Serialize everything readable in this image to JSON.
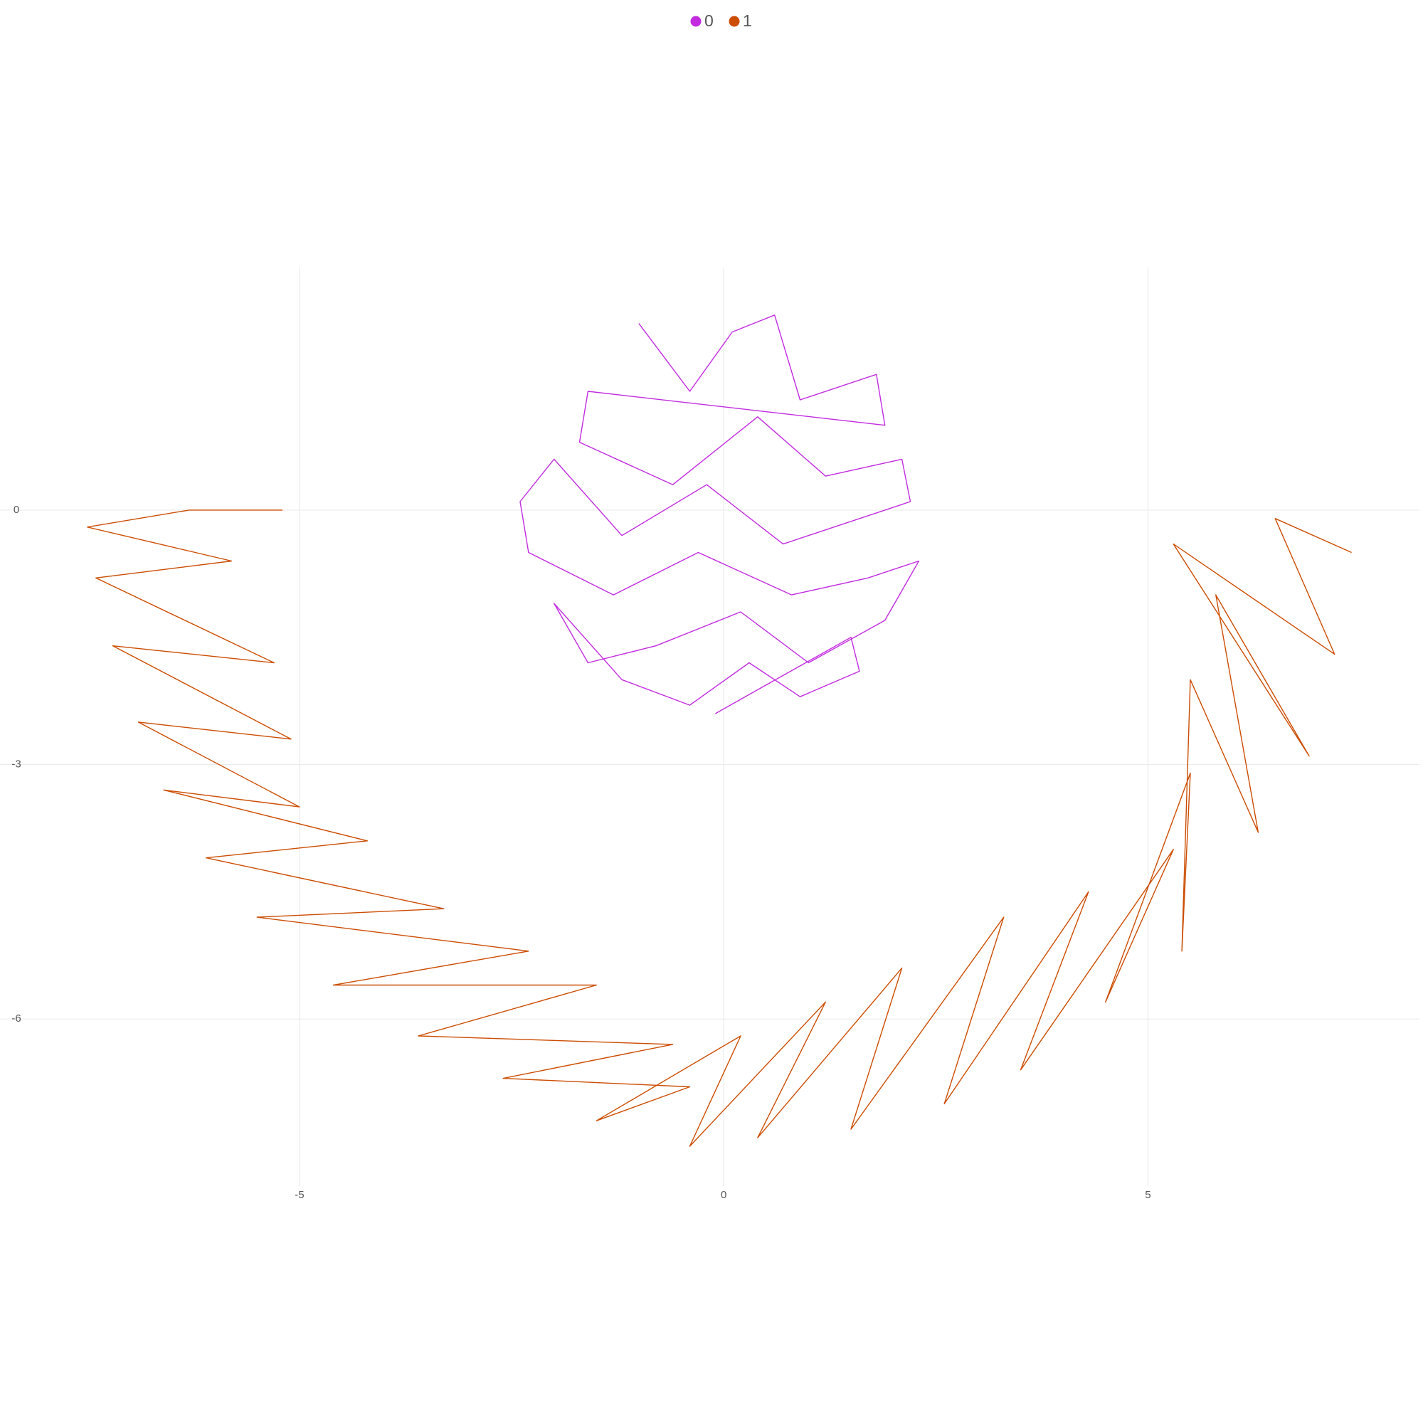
{
  "chart_data": {
    "type": "line",
    "xlim": [
      -8.53,
      8.2
    ],
    "ylim": [
      -7.97,
      2.86
    ],
    "xticks": [
      -5,
      0,
      5
    ],
    "yticks": [
      0,
      -3,
      -6
    ],
    "grid": true,
    "legend": "top",
    "series": [
      {
        "name": "0",
        "color": "#c22be0",
        "x": [
          -1.0,
          -0.4,
          0.1,
          0.6,
          0.9,
          1.8,
          1.9,
          -1.6,
          -1.7,
          -0.6,
          0.4,
          1.2,
          2.1,
          2.2,
          0.7,
          -0.2,
          -1.2,
          -2.0,
          -2.4,
          -2.3,
          -1.3,
          -0.3,
          0.8,
          1.7,
          2.3,
          1.9,
          1.0,
          0.2,
          -0.8,
          -1.6,
          -2.0,
          -1.2,
          -0.4,
          0.3,
          0.9,
          1.6,
          1.5,
          -0.1
        ],
        "y": [
          2.2,
          1.4,
          2.1,
          2.3,
          1.3,
          1.6,
          1.0,
          1.4,
          0.8,
          0.3,
          1.1,
          0.4,
          0.6,
          0.1,
          -0.4,
          0.3,
          -0.3,
          0.6,
          0.1,
          -0.5,
          -1.0,
          -0.5,
          -1.0,
          -0.8,
          -0.6,
          -1.3,
          -1.8,
          -1.2,
          -1.6,
          -1.8,
          -1.1,
          -2.0,
          -2.3,
          -1.8,
          -2.2,
          -1.9,
          -1.5,
          -2.4
        ]
      },
      {
        "name": "1",
        "color": "#cc4c02",
        "x": [
          -5.2,
          -6.3,
          -7.5,
          -5.8,
          -7.4,
          -5.3,
          -7.2,
          -5.1,
          -6.9,
          -5.0,
          -6.6,
          -4.2,
          -6.1,
          -3.3,
          -5.5,
          -2.3,
          -4.6,
          -1.5,
          -3.6,
          -0.6,
          -2.6,
          -0.4,
          -1.5,
          0.2,
          -0.4,
          1.2,
          0.4,
          2.1,
          1.5,
          3.3,
          2.6,
          4.3,
          3.5,
          5.3,
          4.5,
          5.5,
          5.4,
          5.5,
          6.3,
          5.8,
          6.9,
          5.3,
          7.2,
          6.5,
          7.4
        ],
        "y": [
          0.0,
          0.0,
          -0.2,
          -0.6,
          -0.8,
          -1.8,
          -1.6,
          -2.7,
          -2.5,
          -3.5,
          -3.3,
          -3.9,
          -4.1,
          -4.7,
          -4.8,
          -5.2,
          -5.6,
          -5.6,
          -6.2,
          -6.3,
          -6.7,
          -6.8,
          -7.2,
          -6.2,
          -7.5,
          -5.8,
          -7.4,
          -5.4,
          -7.3,
          -4.8,
          -7.0,
          -4.5,
          -6.6,
          -4.0,
          -5.8,
          -3.1,
          -5.2,
          -2.0,
          -3.8,
          -1.0,
          -2.9,
          -0.4,
          -1.7,
          -0.1,
          -0.5
        ]
      }
    ]
  }
}
